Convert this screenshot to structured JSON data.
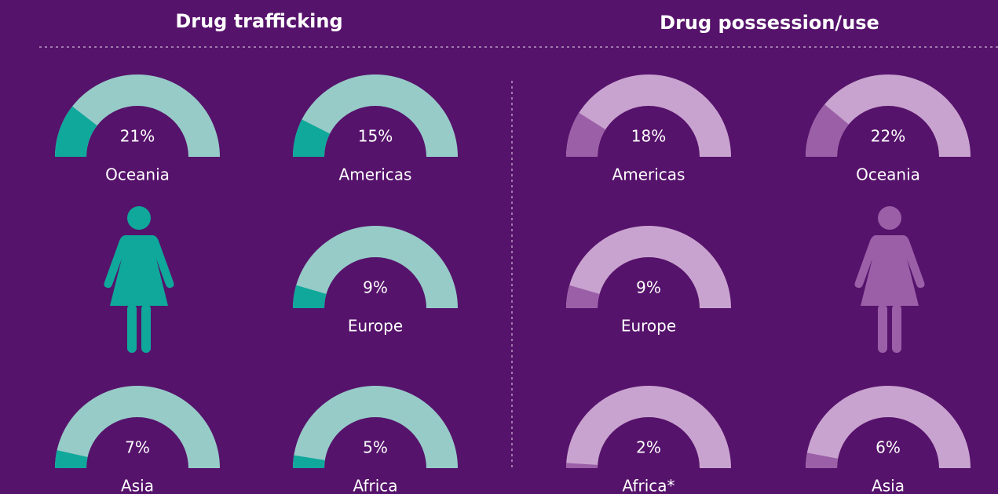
{
  "chart_data": [
    {
      "type": "gauge",
      "title": "Drug trafficking",
      "categories": [
        "Oceania",
        "Americas",
        "Europe",
        "Asia",
        "Africa"
      ],
      "values": [
        21,
        15,
        9,
        7,
        5
      ],
      "value_labels": [
        "21%",
        "15%",
        "9%",
        "7%",
        "5%"
      ],
      "ylim": [
        0,
        100
      ],
      "color": "#0fa89b",
      "track_color": "#97cbc8"
    },
    {
      "type": "gauge",
      "title": "Drug possession/use",
      "categories": [
        "Americas",
        "Oceania",
        "Europe",
        "Africa*",
        "Asia"
      ],
      "values": [
        18,
        22,
        9,
        2,
        6
      ],
      "value_labels": [
        "18%",
        "22%",
        "9%",
        "2%",
        "6%"
      ],
      "ylim": [
        0,
        100
      ],
      "color": "#9b5fa8",
      "track_color": "#c9a3cf"
    }
  ]
}
